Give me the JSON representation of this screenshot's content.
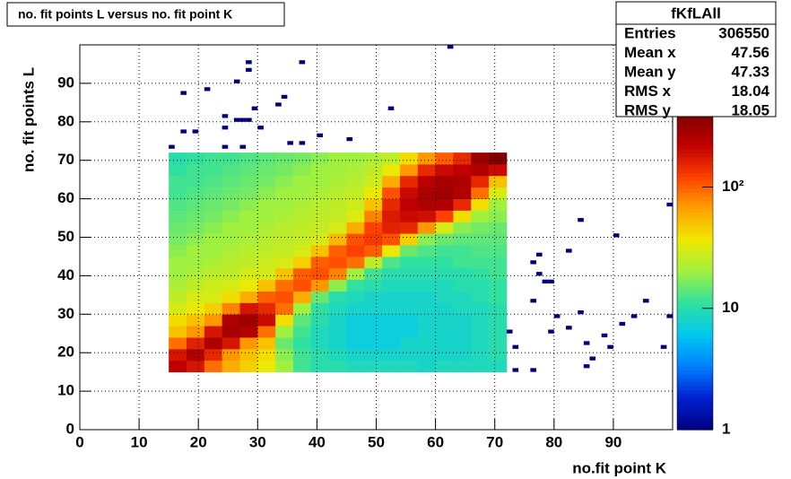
{
  "chart_data": {
    "type": "heatmap",
    "title": "no. fit points L versus no. fit point K",
    "x_label": "no.fit point K",
    "y_label": "no. fit points  L",
    "xlim": [
      0,
      100
    ],
    "ylim": [
      0,
      100
    ],
    "xticks": [
      0,
      10,
      20,
      30,
      40,
      50,
      60,
      70,
      80,
      90
    ],
    "yticks": [
      0,
      10,
      20,
      30,
      40,
      50,
      60,
      70,
      80,
      90
    ],
    "grid": true,
    "zlim": [
      1,
      400
    ],
    "zscale": "log",
    "zticks": [
      1,
      10,
      {
        "value": 100,
        "label": "10²"
      }
    ],
    "colorscale": [
      "#00007f",
      "#0020d0",
      "#0080ff",
      "#00c8f0",
      "#30e0a0",
      "#a0f040",
      "#f0e800",
      "#ffa000",
      "#ff4000",
      "#c00000",
      "#800000"
    ],
    "xbins": [
      15,
      18,
      21,
      24,
      27,
      30,
      33,
      36,
      39,
      42,
      45,
      48,
      51,
      54,
      57,
      60,
      63,
      66,
      69,
      72
    ],
    "ybins": [
      15,
      18,
      21,
      24,
      27,
      30,
      33,
      36,
      39,
      42,
      45,
      48,
      51,
      54,
      57,
      60,
      63,
      66,
      69,
      72
    ],
    "z": [
      [
        220,
        180,
        90,
        60,
        45,
        35,
        20,
        12,
        10,
        10,
        9,
        9,
        9,
        9,
        8,
        9,
        9,
        9,
        9
      ],
      [
        180,
        250,
        150,
        70,
        50,
        40,
        18,
        12,
        10,
        9,
        8,
        8,
        8,
        8,
        8,
        8,
        8,
        9,
        10
      ],
      [
        90,
        160,
        260,
        180,
        70,
        50,
        15,
        11,
        9,
        8,
        7,
        7,
        7,
        8,
        8,
        8,
        8,
        9,
        10
      ],
      [
        50,
        70,
        180,
        280,
        250,
        90,
        20,
        12,
        9,
        8,
        7,
        7,
        7,
        7,
        8,
        8,
        8,
        9,
        10
      ],
      [
        40,
        50,
        70,
        260,
        300,
        200,
        40,
        14,
        10,
        8,
        7,
        7,
        7,
        7,
        8,
        8,
        8,
        9,
        10
      ],
      [
        30,
        35,
        45,
        80,
        180,
        150,
        90,
        20,
        11,
        9,
        8,
        8,
        8,
        8,
        8,
        8,
        9,
        9,
        10
      ],
      [
        25,
        30,
        30,
        40,
        60,
        100,
        110,
        60,
        15,
        10,
        9,
        8,
        8,
        8,
        8,
        9,
        9,
        10,
        11
      ],
      [
        22,
        25,
        28,
        30,
        35,
        50,
        90,
        110,
        70,
        18,
        11,
        10,
        9,
        9,
        9,
        9,
        10,
        10,
        11
      ],
      [
        20,
        22,
        25,
        25,
        30,
        30,
        50,
        100,
        110,
        80,
        20,
        12,
        10,
        10,
        10,
        10,
        10,
        11,
        12
      ],
      [
        20,
        20,
        22,
        24,
        25,
        28,
        30,
        45,
        100,
        110,
        90,
        25,
        13,
        11,
        11,
        11,
        12,
        12,
        12
      ],
      [
        18,
        20,
        20,
        22,
        24,
        25,
        26,
        30,
        50,
        100,
        120,
        100,
        35,
        15,
        13,
        12,
        12,
        13,
        13
      ],
      [
        16,
        18,
        20,
        20,
        22,
        24,
        25,
        26,
        30,
        55,
        110,
        130,
        110,
        45,
        18,
        15,
        14,
        14,
        14
      ],
      [
        15,
        16,
        18,
        20,
        20,
        22,
        24,
        25,
        26,
        30,
        60,
        120,
        160,
        150,
        70,
        30,
        18,
        16,
        15
      ],
      [
        14,
        15,
        16,
        18,
        20,
        20,
        22,
        24,
        25,
        26,
        32,
        80,
        170,
        200,
        190,
        120,
        40,
        20,
        18
      ],
      [
        13,
        14,
        15,
        16,
        18,
        20,
        20,
        22,
        24,
        25,
        28,
        50,
        150,
        220,
        260,
        250,
        150,
        40,
        20
      ],
      [
        12,
        13,
        14,
        15,
        16,
        18,
        20,
        20,
        22,
        24,
        26,
        35,
        110,
        200,
        270,
        300,
        250,
        90,
        30
      ],
      [
        12,
        12,
        13,
        14,
        15,
        16,
        18,
        20,
        20,
        22,
        24,
        28,
        60,
        150,
        230,
        280,
        260,
        150,
        50
      ],
      [
        11,
        12,
        12,
        13,
        14,
        15,
        16,
        18,
        20,
        20,
        22,
        25,
        35,
        70,
        150,
        200,
        220,
        250,
        200
      ],
      [
        10,
        11,
        12,
        12,
        13,
        14,
        15,
        16,
        18,
        20,
        20,
        22,
        25,
        40,
        70,
        100,
        150,
        300,
        400
      ]
    ],
    "outliers": {
      "x": [
        15,
        17,
        17,
        19,
        21,
        24,
        24,
        24,
        26,
        26,
        27,
        27,
        28,
        28,
        28,
        29,
        30,
        33,
        34,
        35,
        37,
        37,
        40,
        45,
        52,
        62,
        72,
        73,
        73,
        76,
        76,
        76,
        77,
        77,
        78,
        79,
        79,
        80,
        82,
        82,
        84,
        84,
        85,
        85,
        86,
        88,
        89,
        90,
        91,
        93,
        95,
        98,
        99,
        99
      ],
      "y": [
        73,
        77,
        87,
        77,
        88,
        73,
        81,
        78,
        90,
        80,
        80,
        73,
        80,
        95,
        93,
        83,
        78,
        84,
        86,
        74,
        95,
        74,
        76,
        75,
        83,
        99,
        25,
        21,
        15,
        15,
        43,
        33,
        45,
        40,
        38,
        25,
        38,
        29,
        46,
        26,
        54,
        30,
        22,
        16,
        18,
        24,
        21,
        50,
        27,
        29,
        33,
        21,
        58,
        29
      ],
      "values": [
        1,
        1,
        1,
        1,
        1,
        1,
        1,
        1,
        1,
        1,
        1,
        1,
        1,
        1,
        1,
        1,
        1,
        1,
        1,
        1,
        1,
        1,
        1,
        1,
        1,
        1,
        1,
        1,
        1,
        1,
        1,
        1,
        1,
        1,
        1,
        1,
        1,
        1,
        1,
        1,
        1,
        1,
        1,
        1,
        1,
        1,
        1,
        1,
        1,
        1,
        1,
        1,
        1,
        1
      ]
    },
    "stats": {
      "title": "fKfLAll",
      "rows": [
        [
          "Entries",
          "306550"
        ],
        [
          "Mean x",
          "47.56"
        ],
        [
          "Mean y",
          "47.33"
        ],
        [
          "RMS x",
          "18.04"
        ],
        [
          "RMS y",
          "18.05"
        ]
      ]
    }
  }
}
